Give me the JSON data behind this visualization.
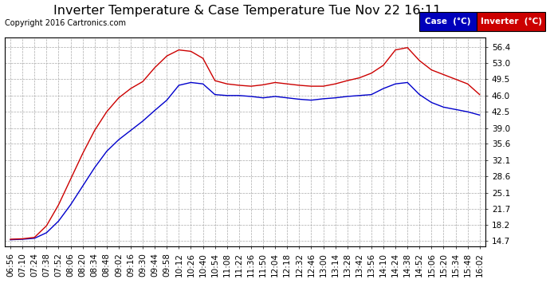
{
  "title": "Inverter Temperature & Case Temperature Tue Nov 22 16:11",
  "copyright": "Copyright 2016 Cartronics.com",
  "legend_case_label": "Case  (°C)",
  "legend_inverter_label": "Inverter  (°C)",
  "case_color": "#0000cc",
  "inverter_color": "#cc0000",
  "legend_case_bg": "#0000bb",
  "legend_inverter_bg": "#cc0000",
  "yticks": [
    14.7,
    18.2,
    21.7,
    25.1,
    28.6,
    32.1,
    35.6,
    39.0,
    42.5,
    46.0,
    49.5,
    53.0,
    56.4
  ],
  "ylim": [
    13.5,
    58.5
  ],
  "background_color": "#ffffff",
  "plot_bg": "#ffffff",
  "grid_color": "#aaaaaa",
  "xtick_labels": [
    "06:56",
    "07:10",
    "07:24",
    "07:38",
    "07:52",
    "08:06",
    "08:20",
    "08:34",
    "08:48",
    "09:02",
    "09:16",
    "09:30",
    "09:44",
    "09:58",
    "10:12",
    "10:26",
    "10:40",
    "10:54",
    "11:08",
    "11:22",
    "11:36",
    "11:50",
    "12:04",
    "12:18",
    "12:32",
    "12:46",
    "13:00",
    "13:14",
    "13:28",
    "13:42",
    "13:56",
    "14:10",
    "14:24",
    "14:38",
    "14:52",
    "15:06",
    "15:20",
    "15:34",
    "15:48",
    "16:02"
  ],
  "case_temps": [
    15.0,
    15.1,
    15.3,
    16.5,
    19.0,
    22.5,
    26.5,
    30.5,
    34.0,
    36.5,
    38.5,
    40.5,
    42.8,
    45.0,
    48.2,
    48.8,
    48.5,
    46.2,
    46.0,
    46.0,
    45.8,
    45.5,
    45.8,
    45.5,
    45.2,
    45.0,
    45.3,
    45.5,
    45.8,
    46.0,
    46.2,
    47.5,
    48.5,
    48.8,
    46.2,
    44.5,
    43.5,
    43.0,
    42.5,
    41.8
  ],
  "inverter_temps": [
    15.1,
    15.2,
    15.5,
    18.0,
    22.5,
    28.0,
    33.5,
    38.5,
    42.5,
    45.5,
    47.5,
    49.0,
    52.0,
    54.5,
    55.8,
    55.5,
    54.0,
    49.2,
    48.5,
    48.2,
    48.0,
    48.3,
    48.8,
    48.5,
    48.2,
    48.0,
    48.0,
    48.5,
    49.2,
    49.8,
    50.8,
    52.5,
    55.8,
    56.3,
    53.5,
    51.5,
    50.5,
    49.5,
    48.5,
    46.2
  ],
  "title_fontsize": 11.5,
  "tick_fontsize": 7.5,
  "copyright_fontsize": 7.0,
  "legend_fontsize": 7.5
}
